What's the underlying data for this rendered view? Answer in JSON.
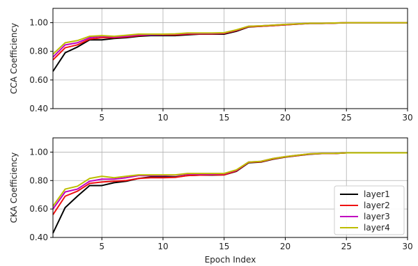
{
  "chart_data": [
    {
      "type": "line",
      "ylabel": "CCA Coefficiency",
      "xlabel": "",
      "xlim": [
        1,
        30
      ],
      "ylim": [
        0.4,
        1.1
      ],
      "xticks": [
        5,
        10,
        15,
        20,
        25,
        30
      ],
      "xtick_labels": [
        "5",
        "10",
        "15",
        "20",
        "25",
        "30"
      ],
      "yticks": [
        0.4,
        0.6,
        0.8,
        1.0
      ],
      "ytick_labels": [
        "0.40",
        "0.60",
        "0.80",
        "1.00"
      ],
      "grid": true,
      "x": [
        1,
        2,
        3,
        4,
        5,
        6,
        7,
        8,
        9,
        10,
        11,
        12,
        13,
        14,
        15,
        16,
        17,
        18,
        19,
        20,
        21,
        22,
        23,
        24,
        25,
        26,
        27,
        28,
        29,
        30
      ],
      "series": [
        {
          "name": "layer1",
          "color": "#000000",
          "values": [
            0.66,
            0.79,
            0.83,
            0.88,
            0.88,
            0.89,
            0.895,
            0.905,
            0.91,
            0.91,
            0.91,
            0.915,
            0.92,
            0.92,
            0.92,
            0.94,
            0.97,
            0.975,
            0.98,
            0.985,
            0.99,
            0.995,
            0.995,
            0.997,
            1.0,
            1.0,
            1.0,
            1.0,
            1.0,
            1.0
          ]
        },
        {
          "name": "layer2",
          "color": "#ee1111",
          "values": [
            0.74,
            0.825,
            0.845,
            0.885,
            0.895,
            0.895,
            0.9,
            0.91,
            0.915,
            0.915,
            0.915,
            0.92,
            0.922,
            0.922,
            0.925,
            0.945,
            0.972,
            0.975,
            0.98,
            0.985,
            0.99,
            0.995,
            0.995,
            0.997,
            1.0,
            1.0,
            1.0,
            1.0,
            1.0,
            1.0
          ]
        },
        {
          "name": "layer3",
          "color": "#c000c0",
          "values": [
            0.76,
            0.845,
            0.86,
            0.895,
            0.905,
            0.9,
            0.905,
            0.915,
            0.915,
            0.918,
            0.92,
            0.925,
            0.925,
            0.925,
            0.928,
            0.948,
            0.975,
            0.978,
            0.983,
            0.988,
            0.992,
            0.996,
            0.996,
            0.998,
            1.0,
            1.0,
            1.0,
            1.0,
            1.0,
            1.0
          ]
        },
        {
          "name": "layer4",
          "color": "#bdbd00",
          "values": [
            0.78,
            0.86,
            0.875,
            0.905,
            0.91,
            0.905,
            0.912,
            0.92,
            0.92,
            0.92,
            0.922,
            0.928,
            0.928,
            0.928,
            0.93,
            0.95,
            0.975,
            0.978,
            0.983,
            0.988,
            0.992,
            0.996,
            0.996,
            0.998,
            1.0,
            1.0,
            1.0,
            1.0,
            1.0,
            1.0
          ]
        }
      ]
    },
    {
      "type": "line",
      "ylabel": "CKA Coefficiency",
      "xlabel": "Epoch Index",
      "xlim": [
        1,
        30
      ],
      "ylim": [
        0.4,
        1.1
      ],
      "xticks": [
        5,
        10,
        15,
        20,
        25,
        30
      ],
      "xtick_labels": [
        "5",
        "10",
        "15",
        "20",
        "25",
        "30"
      ],
      "yticks": [
        0.4,
        0.6,
        0.8,
        1.0
      ],
      "ytick_labels": [
        "0.40",
        "0.60",
        "0.80",
        "1.00"
      ],
      "grid": true,
      "legend_position": "lower-right",
      "x": [
        1,
        2,
        3,
        4,
        5,
        6,
        7,
        8,
        9,
        10,
        11,
        12,
        13,
        14,
        15,
        16,
        17,
        18,
        19,
        20,
        21,
        22,
        23,
        24,
        25,
        26,
        27,
        28,
        29,
        30
      ],
      "series": [
        {
          "name": "layer1",
          "color": "#000000",
          "values": [
            0.43,
            0.61,
            0.69,
            0.765,
            0.765,
            0.785,
            0.795,
            0.815,
            0.825,
            0.825,
            0.825,
            0.835,
            0.838,
            0.838,
            0.84,
            0.865,
            0.925,
            0.93,
            0.95,
            0.965,
            0.975,
            0.985,
            0.99,
            0.99,
            0.995,
            0.995,
            0.995,
            0.995,
            0.995,
            0.995
          ]
        },
        {
          "name": "layer2",
          "color": "#ee1111",
          "values": [
            0.56,
            0.69,
            0.725,
            0.78,
            0.79,
            0.795,
            0.8,
            0.815,
            0.82,
            0.82,
            0.822,
            0.835,
            0.838,
            0.84,
            0.84,
            0.868,
            0.928,
            0.932,
            0.952,
            0.966,
            0.976,
            0.986,
            0.99,
            0.99,
            0.995,
            0.995,
            0.995,
            0.995,
            0.995,
            0.995
          ]
        },
        {
          "name": "layer3",
          "color": "#c000c0",
          "values": [
            0.6,
            0.72,
            0.74,
            0.795,
            0.81,
            0.81,
            0.82,
            0.835,
            0.835,
            0.835,
            0.838,
            0.845,
            0.845,
            0.845,
            0.848,
            0.872,
            0.93,
            0.935,
            0.955,
            0.968,
            0.978,
            0.988,
            0.991,
            0.991,
            0.995,
            0.995,
            0.995,
            0.995,
            0.995,
            0.995
          ]
        },
        {
          "name": "layer4",
          "color": "#bdbd00",
          "values": [
            0.62,
            0.74,
            0.76,
            0.815,
            0.83,
            0.82,
            0.83,
            0.84,
            0.84,
            0.84,
            0.84,
            0.85,
            0.85,
            0.85,
            0.85,
            0.875,
            0.93,
            0.935,
            0.955,
            0.968,
            0.978,
            0.988,
            0.991,
            0.991,
            0.995,
            0.995,
            0.995,
            0.995,
            0.995,
            0.995
          ]
        }
      ]
    }
  ]
}
